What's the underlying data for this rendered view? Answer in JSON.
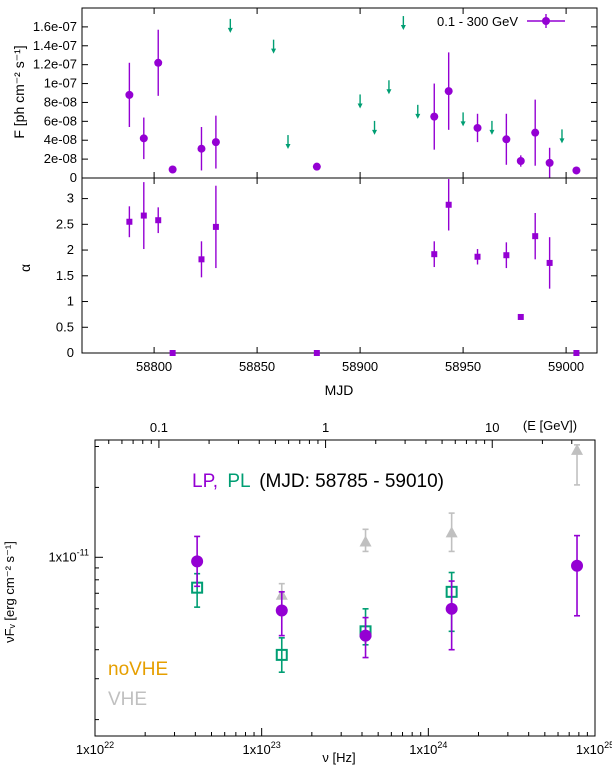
{
  "colors": {
    "purple": "#9400d3",
    "green": "#009e73",
    "gray": "#c0c0c0",
    "orange": "#e69f00",
    "black": "#000000"
  },
  "chart_data": [
    {
      "type": "scatter",
      "panel": "flux",
      "ylabel": "F [ph cm^-2 s^-1]",
      "xlim": [
        58765,
        59015
      ],
      "ylim": [
        0,
        1.8e-07
      ],
      "y_ticks": [
        0,
        2e-08,
        4e-08,
        6e-08,
        8e-08,
        1e-07,
        1.2e-07,
        1.4e-07,
        1.6e-07
      ],
      "y_tick_labels": [
        "0",
        "2e-08",
        "4e-08",
        "6e-08",
        "8e-08",
        "1e-07",
        "1.2e-07",
        "1.4e-07",
        "1.6e-07"
      ],
      "legend": {
        "label": "0.1 - 300 GeV",
        "position": "top-right"
      },
      "series": [
        {
          "name": "0.1 - 300 GeV",
          "color": "#9400d3",
          "points": [
            {
              "x": 58788,
              "y": 8.8e-08,
              "yerr": 3.4e-08
            },
            {
              "x": 58795,
              "y": 4.2e-08,
              "yerr": 2.2e-08
            },
            {
              "x": 58802,
              "y": 1.22e-07,
              "yerr": 3.5e-08
            },
            {
              "x": 58809,
              "y": 9e-09,
              "yerr": 2e-09
            },
            {
              "x": 58823,
              "y": 3.1e-08,
              "yerr": 2.3e-08
            },
            {
              "x": 58830,
              "y": 3.8e-08,
              "yerr": 2.8e-08
            },
            {
              "x": 58879,
              "y": 1.2e-08,
              "yerr": 4e-09
            },
            {
              "x": 58936,
              "y": 6.5e-08,
              "yerr": 3.5e-08
            },
            {
              "x": 58943,
              "y": 9.2e-08,
              "yerr": 4.1e-08
            },
            {
              "x": 58957,
              "y": 5.3e-08,
              "yerr": 1.5e-08
            },
            {
              "x": 58971,
              "y": 4.1e-08,
              "yerr": 2.7e-08
            },
            {
              "x": 58978,
              "y": 1.8e-08,
              "yerr": 6e-09
            },
            {
              "x": 58985,
              "y": 4.8e-08,
              "yerr": 3.5e-08
            },
            {
              "x": 58992,
              "y": 1.6e-08,
              "yerr": 1.6e-08
            },
            {
              "x": 59005,
              "y": 8e-09,
              "yerr": 2e-09
            }
          ]
        },
        {
          "name": "upper limits",
          "color": "#009e73",
          "type": "upper_limit",
          "points": [
            {
              "x": 58837,
              "y": 1.6e-07
            },
            {
              "x": 58858,
              "y": 1.38e-07
            },
            {
              "x": 58865,
              "y": 3.7e-08
            },
            {
              "x": 58900,
              "y": 8e-08
            },
            {
              "x": 58907,
              "y": 5.2e-08
            },
            {
              "x": 58914,
              "y": 9.5e-08
            },
            {
              "x": 58921,
              "y": 1.63e-07
            },
            {
              "x": 58928,
              "y": 6.9e-08
            },
            {
              "x": 58950,
              "y": 6.1e-08
            },
            {
              "x": 58964,
              "y": 5.2e-08
            },
            {
              "x": 58998,
              "y": 4.3e-08
            }
          ]
        }
      ]
    },
    {
      "type": "scatter",
      "panel": "index",
      "xlabel": "MJD",
      "ylabel": "α",
      "xlim": [
        58765,
        59015
      ],
      "ylim": [
        0,
        3.4
      ],
      "x_ticks": [
        58800,
        58850,
        58900,
        58950,
        59000
      ],
      "x_tick_labels": [
        "58800",
        "58850",
        "58900",
        "58950",
        "59000"
      ],
      "y_ticks": [
        0,
        0.5,
        1,
        1.5,
        2,
        2.5,
        3
      ],
      "y_tick_labels": [
        "0",
        "0.5",
        "1",
        "1.5",
        "2",
        "2.5",
        "3"
      ],
      "series": [
        {
          "name": "",
          "color": "#9400d3",
          "points": [
            {
              "x": 58788,
              "y": 2.55,
              "yerr": 0.3
            },
            {
              "x": 58795,
              "y": 2.67,
              "yerr": 0.65
            },
            {
              "x": 58802,
              "y": 2.58,
              "yerr": 0.25
            },
            {
              "x": 58809,
              "y": 0.0,
              "yerr": 0
            },
            {
              "x": 58823,
              "y": 1.82,
              "yerr": 0.35
            },
            {
              "x": 58830,
              "y": 2.45,
              "yerr": 0.8
            },
            {
              "x": 58879,
              "y": 0.0,
              "yerr": 0
            },
            {
              "x": 58936,
              "y": 1.92,
              "yerr": 0.25
            },
            {
              "x": 58943,
              "y": 2.88,
              "yerr": 0.5
            },
            {
              "x": 58957,
              "y": 1.87,
              "yerr": 0.15
            },
            {
              "x": 58971,
              "y": 1.9,
              "yerr": 0.25
            },
            {
              "x": 58978,
              "y": 0.7,
              "yerr": 0
            },
            {
              "x": 58985,
              "y": 2.27,
              "yerr": 0.45
            },
            {
              "x": 58992,
              "y": 1.75,
              "yerr": 0.5
            },
            {
              "x": 59005,
              "y": 0.0,
              "yerr": 0
            }
          ]
        }
      ]
    },
    {
      "type": "scatter",
      "panel": "sed",
      "title": "(MJD: 58785 - 59010)",
      "title_prefix": [
        "LP,",
        "PL"
      ],
      "xlabel": "ν [Hz]",
      "ylabel": "νF_ν [erg cm^-2 s^-1]",
      "top_xlabel": "(E [GeV])",
      "x_scale": "log",
      "y_scale": "log",
      "xlim": [
        1e+22,
        1e+25
      ],
      "ylim": [
        1.7e-12,
        3.2e-11
      ],
      "x_ticks": [
        1e+22,
        1e+23,
        1e+24,
        1e+25
      ],
      "x_tick_labels": [
        "1x10^22",
        "1x10^23",
        "1x10^24",
        "1x10^25"
      ],
      "y_ticks": [
        1e-11
      ],
      "y_tick_labels": [
        "1x10^-11"
      ],
      "top_x_ticks": [
        0.1,
        1,
        10
      ],
      "top_x_tick_labels": [
        "0.1",
        "1",
        "10"
      ],
      "legend_labels": [
        "noVHE",
        "VHE"
      ],
      "series": [
        {
          "name": "LP",
          "color": "#9400d3",
          "marker": "circle",
          "points": [
            {
              "x": 4.1e+22,
              "y": 9.6e-12,
              "ylo": 7.5e-12,
              "yhi": 1.23e-11
            },
            {
              "x": 1.32e+23,
              "y": 5.9e-12,
              "ylo": 4.6e-12,
              "yhi": 7.1e-12
            },
            {
              "x": 4.2e+23,
              "y": 4.6e-12,
              "ylo": 3.7e-12,
              "yhi": 5.5e-12
            },
            {
              "x": 1.38e+24,
              "y": 6e-12,
              "ylo": 4e-12,
              "yhi": 7.9e-12
            },
            {
              "x": 7.8e+24,
              "y": 9.2e-12,
              "ylo": 5.6e-12,
              "yhi": 1.24e-11
            }
          ]
        },
        {
          "name": "PL",
          "color": "#009e73",
          "marker": "open-square",
          "points": [
            {
              "x": 4.1e+22,
              "y": 7.4e-12,
              "ylo": 6.1e-12,
              "yhi": 8.5e-12
            },
            {
              "x": 1.32e+23,
              "y": 3.8e-12,
              "ylo": 3.2e-12,
              "yhi": 4.5e-12
            },
            {
              "x": 4.2e+23,
              "y": 4.8e-12,
              "ylo": 4.2e-12,
              "yhi": 6e-12
            },
            {
              "x": 1.38e+24,
              "y": 7.1e-12,
              "ylo": 4.8e-12,
              "yhi": 8.6e-12
            }
          ]
        },
        {
          "name": "VHE",
          "color": "#c0c0c0",
          "marker": "triangle",
          "points": [
            {
              "x": 1.32e+23,
              "y": 6.9e-12,
              "ylo": 6.1e-12,
              "yhi": 7.7e-12
            },
            {
              "x": 4.2e+23,
              "y": 1.17e-11,
              "ylo": 1.06e-11,
              "yhi": 1.32e-11
            },
            {
              "x": 1.38e+24,
              "y": 1.28e-11,
              "ylo": 1.06e-11,
              "yhi": 1.55e-11
            },
            {
              "x": 7.8e+24,
              "y": 2.9e-11,
              "ylo": 2.05e-11,
              "yhi": 3.05e-11
            }
          ]
        }
      ]
    }
  ]
}
